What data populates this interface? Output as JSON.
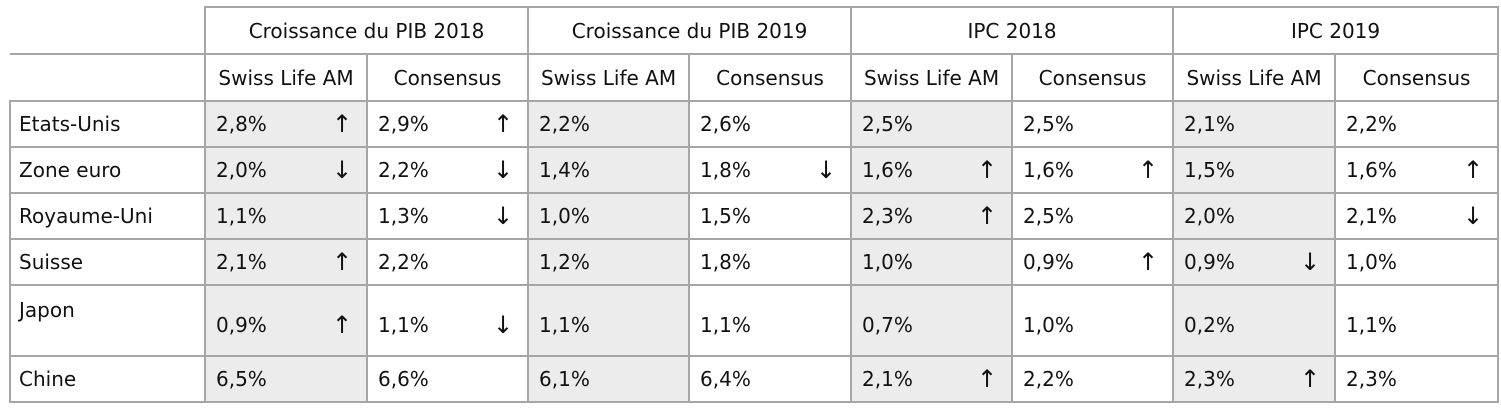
{
  "groups": [
    "Croissance du PIB 2018",
    "Croissance du PIB 2019",
    "IPC 2018",
    "IPC 2019"
  ],
  "subheaders": [
    "Swiss Life AM",
    "Consensus",
    "Swiss Life AM",
    "Consensus",
    "Swiss Life AM",
    "Consensus",
    "Swiss Life AM",
    "Consensus"
  ],
  "arrow_icons": {
    "up": "↑",
    "down": "↓",
    "none": ""
  },
  "rows": [
    {
      "country": "Etats-Unis",
      "cells": [
        {
          "value": "2,8%",
          "trend": "up"
        },
        {
          "value": "2,9%",
          "trend": "up"
        },
        {
          "value": "2,2%",
          "trend": "none"
        },
        {
          "value": "2,6%",
          "trend": "none"
        },
        {
          "value": "2,5%",
          "trend": "none"
        },
        {
          "value": "2,5%",
          "trend": "none"
        },
        {
          "value": "2,1%",
          "trend": "none"
        },
        {
          "value": "2,2%",
          "trend": "none"
        }
      ]
    },
    {
      "country": "Zone euro",
      "cells": [
        {
          "value": "2,0%",
          "trend": "down"
        },
        {
          "value": "2,2%",
          "trend": "down"
        },
        {
          "value": "1,4%",
          "trend": "none"
        },
        {
          "value": "1,8%",
          "trend": "down"
        },
        {
          "value": "1,6%",
          "trend": "up"
        },
        {
          "value": "1,6%",
          "trend": "up"
        },
        {
          "value": "1,5%",
          "trend": "none"
        },
        {
          "value": "1,6%",
          "trend": "up"
        }
      ]
    },
    {
      "country": "Royaume-Uni",
      "cells": [
        {
          "value": "1,1%",
          "trend": "none"
        },
        {
          "value": "1,3%",
          "trend": "down"
        },
        {
          "value": "1,0%",
          "trend": "none"
        },
        {
          "value": "1,5%",
          "trend": "none"
        },
        {
          "value": "2,3%",
          "trend": "up"
        },
        {
          "value": "2,5%",
          "trend": "none"
        },
        {
          "value": "2,0%",
          "trend": "none"
        },
        {
          "value": "2,1%",
          "trend": "down"
        }
      ]
    },
    {
      "country": "Suisse",
      "cells": [
        {
          "value": "2,1%",
          "trend": "up"
        },
        {
          "value": "2,2%",
          "trend": "none"
        },
        {
          "value": "1,2%",
          "trend": "none"
        },
        {
          "value": "1,8%",
          "trend": "none"
        },
        {
          "value": "1,0%",
          "trend": "none"
        },
        {
          "value": "0,9%",
          "trend": "up"
        },
        {
          "value": "0,9%",
          "trend": "down"
        },
        {
          "value": "1,0%",
          "trend": "none"
        }
      ]
    },
    {
      "country": "Japon",
      "cells": [
        {
          "value": "0,9%",
          "trend": "up"
        },
        {
          "value": "1,1%",
          "trend": "down"
        },
        {
          "value": "1,1%",
          "trend": "none"
        },
        {
          "value": "1,1%",
          "trend": "none"
        },
        {
          "value": "0,7%",
          "trend": "none"
        },
        {
          "value": "1,0%",
          "trend": "none"
        },
        {
          "value": "0,2%",
          "trend": "none"
        },
        {
          "value": "1,1%",
          "trend": "none"
        }
      ]
    },
    {
      "country": "Chine",
      "cells": [
        {
          "value": "6,5%",
          "trend": "none"
        },
        {
          "value": "6,6%",
          "trend": "none"
        },
        {
          "value": "6,1%",
          "trend": "none"
        },
        {
          "value": "6,4%",
          "trend": "none"
        },
        {
          "value": "2,1%",
          "trend": "up"
        },
        {
          "value": "2,2%",
          "trend": "none"
        },
        {
          "value": "2,3%",
          "trend": "up"
        },
        {
          "value": "2,3%",
          "trend": "none"
        }
      ]
    }
  ]
}
